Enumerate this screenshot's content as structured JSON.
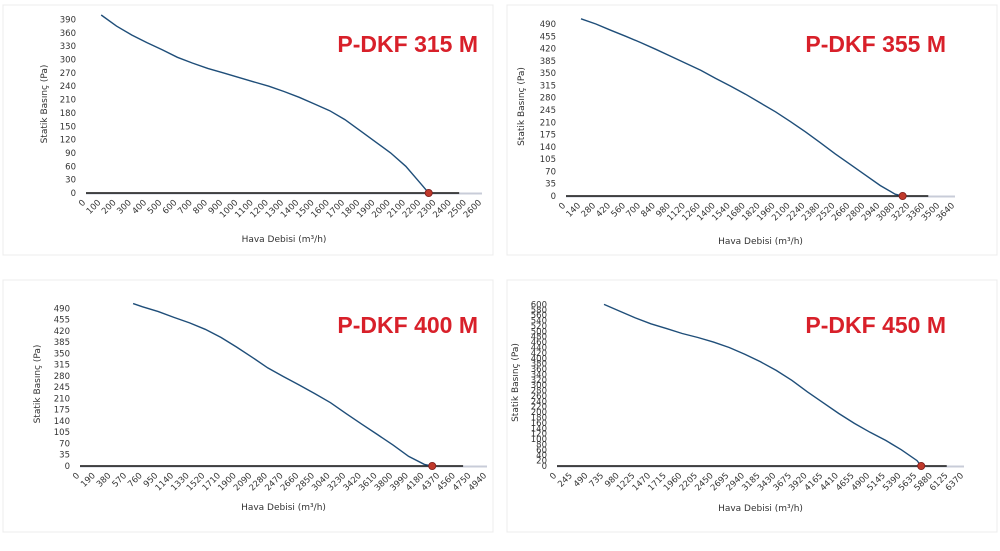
{
  "chart_data": [
    {
      "type": "line",
      "title": "P-DKF 315 M",
      "xlabel": "Hava Debisi (m³/h)",
      "ylabel": "Statik Basınç (Pa)",
      "x_ticks": [
        0,
        100,
        200,
        300,
        400,
        500,
        600,
        700,
        800,
        900,
        1000,
        1100,
        1200,
        1300,
        1400,
        1500,
        1600,
        1700,
        1800,
        1900,
        2000,
        2100,
        2200,
        2300,
        2400,
        2500,
        2600
      ],
      "y_ticks": [
        0,
        30,
        60,
        90,
        120,
        150,
        180,
        210,
        240,
        270,
        300,
        330,
        360,
        390
      ],
      "xlim": [
        0,
        2600
      ],
      "ylim": [
        0,
        400
      ],
      "series": [
        {
          "x": [
            100,
            200,
            300,
            400,
            500,
            600,
            700,
            800,
            900,
            1000,
            1100,
            1200,
            1300,
            1400,
            1500,
            1600,
            1700,
            1800,
            1900,
            2000,
            2100,
            2200,
            2250
          ],
          "y": [
            400,
            375,
            355,
            338,
            322,
            305,
            292,
            280,
            270,
            260,
            250,
            240,
            228,
            215,
            200,
            185,
            165,
            140,
            115,
            90,
            60,
            20,
            0
          ]
        }
      ],
      "marker": {
        "x": 2250,
        "y": 0
      },
      "zero_line_end": 2450,
      "grid": false
    },
    {
      "type": "line",
      "title": "P-DKF 355 M",
      "xlabel": "Hava Debisi (m³/h)",
      "ylabel": "Statik Basınç (Pa)",
      "x_ticks": [
        0,
        140,
        280,
        420,
        560,
        700,
        840,
        980,
        1120,
        1260,
        1400,
        1540,
        1680,
        1820,
        1960,
        2100,
        2240,
        2380,
        2520,
        2660,
        2800,
        2940,
        3080,
        3220,
        3360,
        3500,
        3640
      ],
      "y_ticks": [
        0,
        35,
        70,
        105,
        140,
        175,
        210,
        245,
        280,
        315,
        350,
        385,
        420,
        455,
        490
      ],
      "xlim": [
        0,
        3640
      ],
      "ylim": [
        0,
        510
      ],
      "series": [
        {
          "x": [
            140,
            280,
            420,
            560,
            700,
            840,
            980,
            1120,
            1260,
            1400,
            1540,
            1680,
            1820,
            1960,
            2100,
            2240,
            2380,
            2520,
            2660,
            2800,
            2940,
            3080,
            3150
          ],
          "y": [
            505,
            490,
            472,
            455,
            437,
            418,
            398,
            378,
            358,
            335,
            313,
            290,
            265,
            240,
            212,
            183,
            152,
            120,
            90,
            60,
            30,
            5,
            0
          ]
        }
      ],
      "marker": {
        "x": 3150,
        "y": 0
      },
      "zero_line_end": 3390,
      "grid": false
    },
    {
      "type": "line",
      "title": "P-DKF 400 M",
      "xlabel": "Hava Debisi (m³/h)",
      "ylabel": "Statik Basınç (Pa)",
      "x_ticks": [
        0,
        190,
        380,
        570,
        760,
        950,
        1140,
        1330,
        1520,
        1710,
        1900,
        2090,
        2280,
        2470,
        2660,
        2850,
        3040,
        3230,
        3420,
        3610,
        3800,
        3990,
        4180,
        4370,
        4560,
        4750,
        4940
      ],
      "y_ticks": [
        0,
        35,
        70,
        105,
        140,
        175,
        210,
        245,
        280,
        315,
        350,
        385,
        420,
        455,
        490
      ],
      "xlim": [
        0,
        4940
      ],
      "ylim": [
        0,
        510
      ],
      "series": [
        {
          "x": [
            645,
            760,
            950,
            1140,
            1330,
            1520,
            1710,
            1900,
            2090,
            2280,
            2470,
            2660,
            2850,
            3040,
            3230,
            3420,
            3610,
            3800,
            3990,
            4180,
            4275
          ],
          "y": [
            505,
            495,
            480,
            462,
            445,
            425,
            400,
            370,
            338,
            305,
            278,
            252,
            225,
            197,
            163,
            130,
            98,
            65,
            30,
            5,
            0
          ]
        }
      ],
      "marker": {
        "x": 4275,
        "y": 0
      },
      "zero_line_end": 4650,
      "grid": false
    },
    {
      "type": "line",
      "title": "P-DKF 450 M",
      "xlabel": "Hava Debisi (m³/h)",
      "ylabel": "Statik Basınç (Pa)",
      "x_ticks": [
        0,
        245,
        490,
        735,
        980,
        1225,
        1470,
        1715,
        1960,
        2205,
        2450,
        2695,
        2940,
        3185,
        3430,
        3675,
        3920,
        4165,
        4410,
        4655,
        4900,
        5145,
        5390,
        5635,
        5880,
        6125,
        6370
      ],
      "y_ticks": [
        0,
        20,
        40,
        60,
        80,
        100,
        120,
        140,
        160,
        180,
        200,
        220,
        240,
        260,
        280,
        300,
        320,
        340,
        360,
        380,
        400,
        420,
        440,
        460,
        480,
        500,
        520,
        540,
        560,
        580,
        600
      ],
      "xlim": [
        0,
        6370
      ],
      "ylim": [
        0,
        620
      ],
      "series": [
        {
          "x": [
            735,
            980,
            1225,
            1470,
            1715,
            1960,
            2205,
            2450,
            2695,
            2940,
            3185,
            3430,
            3675,
            3920,
            4165,
            4410,
            4655,
            4900,
            5145,
            5390,
            5635,
            5700
          ],
          "y": [
            600,
            575,
            550,
            528,
            510,
            492,
            477,
            460,
            440,
            415,
            387,
            355,
            318,
            275,
            235,
            195,
            158,
            125,
            95,
            60,
            20,
            0
          ]
        }
      ],
      "marker": {
        "x": 5700,
        "y": 0
      },
      "zero_line_end": 6100,
      "grid": false
    }
  ],
  "colors": {
    "title": "#d8202a",
    "curve": "#1f4e79",
    "zero_line": "#111111",
    "axis": "#c8ccd8",
    "marker": "#c0392b"
  }
}
